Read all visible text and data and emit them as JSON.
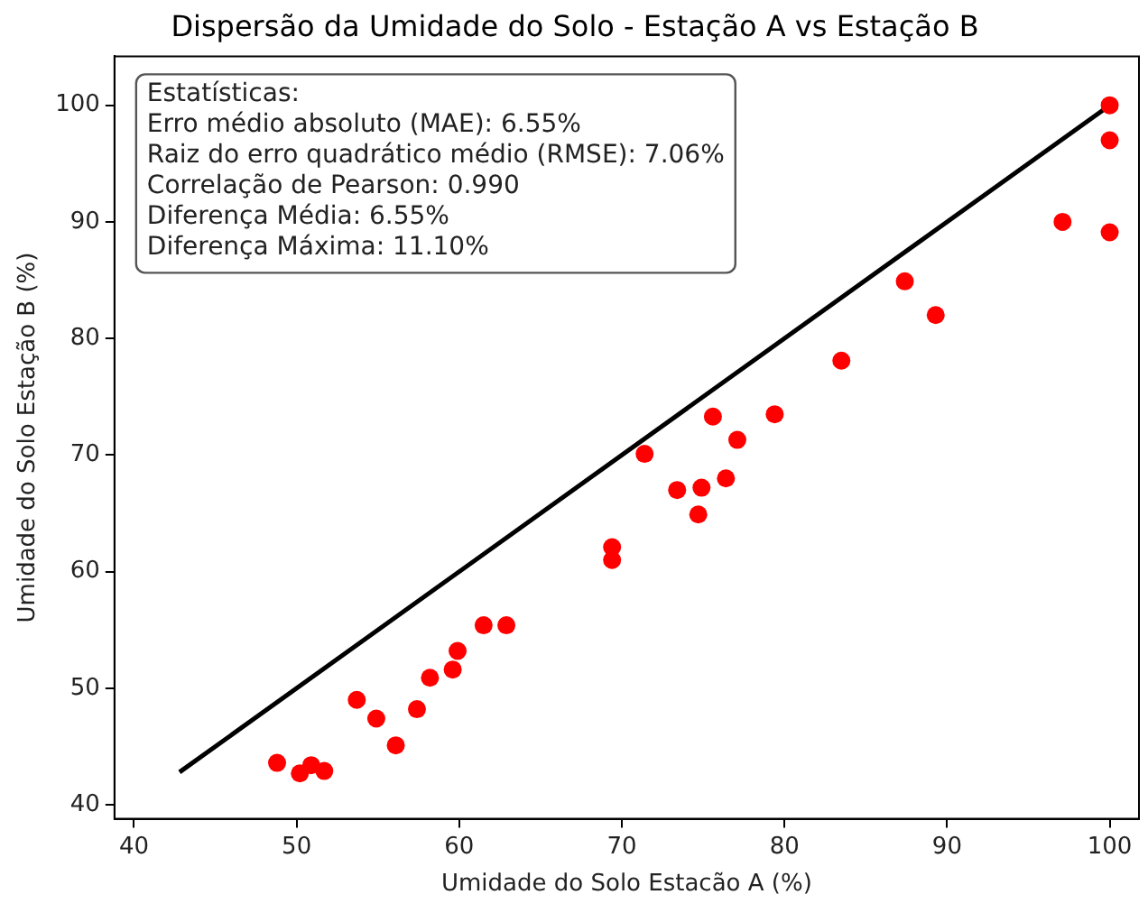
{
  "chart_data": {
    "type": "scatter",
    "title": "Dispersão da Umidade do Solo - Estação A vs Estação B",
    "xlabel": "Umidade do Solo Estacão A (%)",
    "ylabel": "Umidade do Solo Estação B (%)",
    "annotations": [
      "Estatísticas:",
      "Erro médio absoluto (MAE): 6.55%",
      "Raiz do erro quadrático médio (RMSE): 7.06%",
      "Correlação de Pearson: 0.990",
      "Diferença Média: 6.55%",
      "Diferença Máxima: 11.10%"
    ],
    "series": [
      {
        "type": "scatter",
        "color": "#ff0000",
        "marker": "circle",
        "x": [
          48.8,
          50.2,
          50.9,
          51.7,
          53.7,
          54.9,
          56.1,
          57.4,
          58.2,
          59.6,
          59.9,
          61.5,
          62.9,
          69.4,
          69.4,
          71.4,
          73.4,
          74.9,
          74.7,
          75.6,
          76.4,
          77.1,
          79.4,
          83.5,
          87.4,
          89.3,
          100,
          100,
          97.1,
          100
        ],
        "values": [
          43.6,
          42.7,
          43.4,
          42.9,
          49.0,
          47.4,
          45.1,
          48.2,
          50.9,
          51.6,
          53.2,
          55.4,
          55.4,
          62.1,
          61.0,
          70.1,
          67.0,
          67.2,
          64.9,
          73.3,
          68.0,
          71.3,
          73.5,
          78.1,
          84.9,
          82.0,
          100,
          97,
          90.0,
          89.1
        ]
      },
      {
        "type": "line",
        "color": "#000000",
        "marker": "none",
        "line_style": "solid",
        "x": [
          42.8,
          100
        ],
        "values": [
          42.8,
          100
        ]
      }
    ],
    "xlim": [
      38.8,
      101.8
    ],
    "xticks": [
      40,
      50,
      60,
      70,
      80,
      90,
      100
    ],
    "ylim": [
      38.8,
      104.2
    ],
    "yticks": [
      40,
      50,
      60,
      70,
      80,
      90,
      100
    ],
    "grid": false,
    "legend": false
  }
}
